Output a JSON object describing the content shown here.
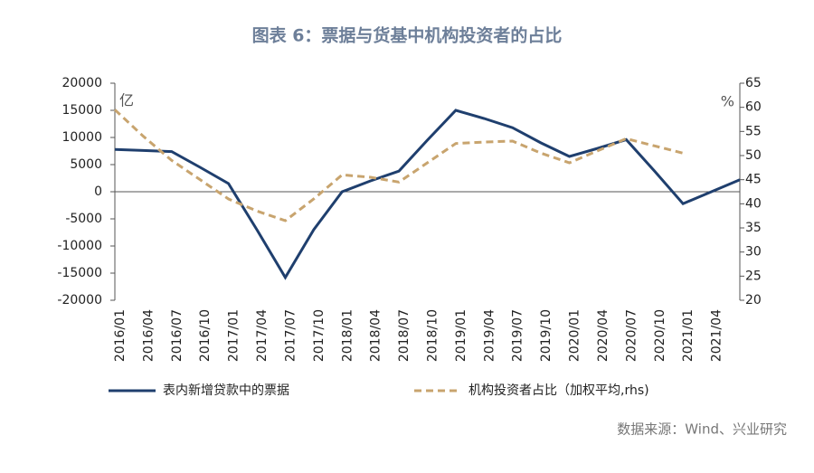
{
  "chart_data": {
    "type": "line",
    "title": "图表 6：票据与货基中机构投资者的占比",
    "y_unit": "亿",
    "y2_unit": "%",
    "source": "数据来源：Wind、兴业研究",
    "categories": [
      "2016/01",
      "2016/04",
      "2016/07",
      "2016/10",
      "2017/01",
      "2017/04",
      "2017/07",
      "2017/10",
      "2018/01",
      "2018/04",
      "2018/07",
      "2018/10",
      "2019/01",
      "2019/04",
      "2019/07",
      "2019/10",
      "2020/01",
      "2020/04",
      "2020/07",
      "2020/10",
      "2021/01",
      "2021/04",
      null
    ],
    "series": [
      {
        "name": "表内新增贷款中的票据",
        "color": "#1f3f6e",
        "dash": false,
        "values": [
          7800,
          7600,
          7400,
          4500,
          1500,
          -7000,
          -15800,
          -7000,
          0,
          2000,
          3800,
          9500,
          15000,
          13500,
          11800,
          9000,
          6500,
          8000,
          9600,
          3800,
          -2200,
          0,
          2200
        ]
      },
      {
        "name": "机构投资者占比（加权平均,rhs)",
        "color": "#c8a46e",
        "dash": true,
        "axis": "y2",
        "values": [
          59.5,
          54,
          49,
          45,
          41,
          38.5,
          36.5,
          41,
          46,
          45.5,
          44.5,
          48.5,
          52.5,
          52.8,
          53,
          50.5,
          48.5,
          51,
          53.5,
          52,
          50.5,
          null,
          null
        ]
      }
    ],
    "ylim": [
      -20000,
      20000
    ],
    "yticks": [
      20000,
      15000,
      10000,
      5000,
      0,
      -5000,
      -10000,
      -15000,
      -20000
    ],
    "y2lim": [
      20,
      65
    ],
    "y2ticks": [
      65,
      60,
      55,
      50,
      45,
      40,
      35,
      30,
      25,
      20
    ]
  }
}
